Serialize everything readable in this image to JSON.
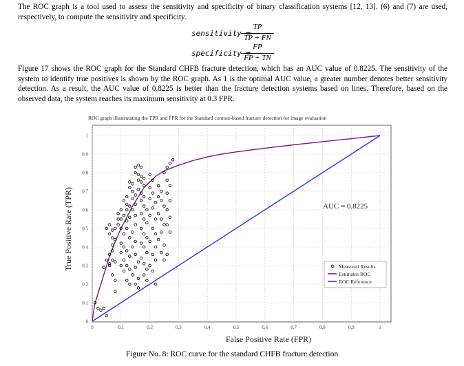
{
  "paragraph_1": "The ROC graph is a tool used to assess the sensitivity and specificity of binary classification systems [12, 13]. (6) and (7) are used, respectively, to compute the sensitivity and specificity.",
  "equations": {
    "sensitivity_lhs": "sensitivity =",
    "sensitivity_num": "TP",
    "sensitivity_den": "TP + FN",
    "specificity_lhs": "specificity =",
    "specificity_num": "FP",
    "specificity_den": "FP + TN"
  },
  "paragraph_2": "Figure 17 shows the ROC graph for the Standard CHFB fracture detection, which has an AUC value of 0.8225. The sensitivity of the system to identify true positives is shown by the ROC graph. As 1 is the optimal AUC value, a greater number denotes better sensitivity detection. As a result, the AUC value of 0.8225 is better than the fracture detection systems based on lines. Therefore, based on the observed data, the system reaches its maximum sensitivity at 0.3 FPR.",
  "caption": "Figure No. 8: ROC curve for the standard CHFB fracture detection",
  "chart_data": {
    "type": "line",
    "title": "ROC graph illustrutating the TPR and FPR for the Standard contour-based fracture detection for image evaluation",
    "xlabel": "False Positive Rate (FPR)",
    "ylabel": "True Positive Rate (TPR)",
    "xlim": [
      0,
      1
    ],
    "ylim": [
      0,
      1
    ],
    "xticks": [
      "0",
      "0,1",
      "0,2",
      "0,3",
      "0,4",
      "0,5",
      "0,6",
      "0,7",
      "0,8",
      "0,9",
      "1"
    ],
    "yticks": [
      "0",
      "0.1",
      "0.2",
      "0.3",
      "0.4",
      "0.5",
      "0.6",
      "0.7",
      "0.8",
      "0.9",
      "1"
    ],
    "grid": true,
    "legend_position": "bottom-right",
    "annotation": "AUC = 0.8225",
    "series": [
      {
        "name": "Measured Results",
        "kind": "scatter",
        "color": "#000000",
        "points": [
          [
            0.01,
            0.1
          ],
          [
            0.02,
            0.07
          ],
          [
            0.03,
            0.06
          ],
          [
            0.04,
            0.07
          ],
          [
            0.05,
            0.03
          ],
          [
            0.06,
            0.3
          ],
          [
            0.04,
            0.29
          ],
          [
            0.05,
            0.33
          ],
          [
            0.06,
            0.36
          ],
          [
            0.07,
            0.38
          ],
          [
            0.06,
            0.31
          ],
          [
            0.07,
            0.41
          ],
          [
            0.07,
            0.45
          ],
          [
            0.06,
            0.47
          ],
          [
            0.05,
            0.5
          ],
          [
            0.06,
            0.52
          ],
          [
            0.07,
            0.49
          ],
          [
            0.08,
            0.5
          ],
          [
            0.08,
            0.44
          ],
          [
            0.07,
            0.33
          ],
          [
            0.08,
            0.32
          ],
          [
            0.07,
            0.25
          ],
          [
            0.08,
            0.22
          ],
          [
            0.08,
            0.16
          ],
          [
            0.09,
            0.55
          ],
          [
            0.09,
            0.52
          ],
          [
            0.09,
            0.58
          ],
          [
            0.1,
            0.6
          ],
          [
            0.1,
            0.55
          ],
          [
            0.1,
            0.5
          ],
          [
            0.11,
            0.47
          ],
          [
            0.1,
            0.42
          ],
          [
            0.11,
            0.4
          ],
          [
            0.1,
            0.37
          ],
          [
            0.11,
            0.33
          ],
          [
            0.1,
            0.3
          ],
          [
            0.11,
            0.27
          ],
          [
            0.11,
            0.57
          ],
          [
            0.12,
            0.54
          ],
          [
            0.12,
            0.6
          ],
          [
            0.12,
            0.63
          ],
          [
            0.11,
            0.65
          ],
          [
            0.12,
            0.67
          ],
          [
            0.13,
            0.62
          ],
          [
            0.13,
            0.56
          ],
          [
            0.12,
            0.5
          ],
          [
            0.13,
            0.45
          ],
          [
            0.12,
            0.38
          ],
          [
            0.13,
            0.35
          ],
          [
            0.12,
            0.3
          ],
          [
            0.13,
            0.28
          ],
          [
            0.12,
            0.22
          ],
          [
            0.13,
            0.2
          ],
          [
            0.13,
            0.72
          ],
          [
            0.13,
            0.75
          ],
          [
            0.14,
            0.74
          ],
          [
            0.14,
            0.7
          ],
          [
            0.15,
            0.68
          ],
          [
            0.14,
            0.66
          ],
          [
            0.15,
            0.63
          ],
          [
            0.14,
            0.6
          ],
          [
            0.15,
            0.57
          ],
          [
            0.15,
            0.52
          ],
          [
            0.14,
            0.48
          ],
          [
            0.15,
            0.43
          ],
          [
            0.14,
            0.4
          ],
          [
            0.15,
            0.36
          ],
          [
            0.16,
            0.32
          ],
          [
            0.15,
            0.29
          ],
          [
            0.14,
            0.25
          ],
          [
            0.16,
            0.23
          ],
          [
            0.15,
            0.2
          ],
          [
            0.16,
            0.18
          ],
          [
            0.15,
            0.83
          ],
          [
            0.16,
            0.84
          ],
          [
            0.17,
            0.83
          ],
          [
            0.15,
            0.8
          ],
          [
            0.16,
            0.79
          ],
          [
            0.17,
            0.78
          ],
          [
            0.18,
            0.77
          ],
          [
            0.16,
            0.76
          ],
          [
            0.17,
            0.75
          ],
          [
            0.18,
            0.73
          ],
          [
            0.16,
            0.71
          ],
          [
            0.17,
            0.69
          ],
          [
            0.18,
            0.67
          ],
          [
            0.17,
            0.65
          ],
          [
            0.18,
            0.62
          ],
          [
            0.19,
            0.6
          ],
          [
            0.17,
            0.58
          ],
          [
            0.18,
            0.55
          ],
          [
            0.19,
            0.53
          ],
          [
            0.17,
            0.5
          ],
          [
            0.18,
            0.47
          ],
          [
            0.19,
            0.45
          ],
          [
            0.17,
            0.42
          ],
          [
            0.18,
            0.4
          ],
          [
            0.19,
            0.37
          ],
          [
            0.17,
            0.34
          ],
          [
            0.18,
            0.31
          ],
          [
            0.19,
            0.28
          ],
          [
            0.18,
            0.25
          ],
          [
            0.19,
            0.22
          ],
          [
            0.2,
            0.79
          ],
          [
            0.21,
            0.76
          ],
          [
            0.2,
            0.72
          ],
          [
            0.21,
            0.69
          ],
          [
            0.2,
            0.66
          ],
          [
            0.22,
            0.64
          ],
          [
            0.21,
            0.61
          ],
          [
            0.2,
            0.57
          ],
          [
            0.22,
            0.55
          ],
          [
            0.21,
            0.5
          ],
          [
            0.22,
            0.47
          ],
          [
            0.2,
            0.43
          ],
          [
            0.22,
            0.4
          ],
          [
            0.21,
            0.36
          ],
          [
            0.22,
            0.33
          ],
          [
            0.2,
            0.3
          ],
          [
            0.21,
            0.27
          ],
          [
            0.22,
            0.2
          ],
          [
            0.23,
            0.73
          ],
          [
            0.24,
            0.7
          ],
          [
            0.23,
            0.67
          ],
          [
            0.24,
            0.65
          ],
          [
            0.25,
            0.62
          ],
          [
            0.23,
            0.58
          ],
          [
            0.24,
            0.55
          ],
          [
            0.25,
            0.52
          ],
          [
            0.24,
            0.48
          ],
          [
            0.23,
            0.44
          ],
          [
            0.25,
            0.41
          ],
          [
            0.24,
            0.37
          ],
          [
            0.25,
            0.33
          ],
          [
            0.26,
            0.36
          ],
          [
            0.25,
            0.8
          ],
          [
            0.26,
            0.83
          ],
          [
            0.27,
            0.85
          ],
          [
            0.28,
            0.87
          ],
          [
            0.26,
            0.76
          ],
          [
            0.27,
            0.73
          ],
          [
            0.26,
            0.69
          ],
          [
            0.27,
            0.65
          ],
          [
            0.26,
            0.6
          ],
          [
            0.27,
            0.56
          ],
          [
            0.26,
            0.52
          ],
          [
            0.27,
            0.48
          ]
        ]
      },
      {
        "name": "Estimates ROC",
        "kind": "line",
        "color": "#7a1a7a",
        "points": [
          [
            0,
            0
          ],
          [
            0.005,
            0.06
          ],
          [
            0.01,
            0.1
          ],
          [
            0.02,
            0.15
          ],
          [
            0.03,
            0.2
          ],
          [
            0.04,
            0.25
          ],
          [
            0.05,
            0.3
          ],
          [
            0.06,
            0.35
          ],
          [
            0.07,
            0.39
          ],
          [
            0.08,
            0.43
          ],
          [
            0.1,
            0.5
          ],
          [
            0.12,
            0.56
          ],
          [
            0.14,
            0.62
          ],
          [
            0.16,
            0.67
          ],
          [
            0.18,
            0.72
          ],
          [
            0.2,
            0.75
          ],
          [
            0.22,
            0.78
          ],
          [
            0.25,
            0.81
          ],
          [
            0.3,
            0.84
          ],
          [
            0.35,
            0.865
          ],
          [
            0.4,
            0.885
          ],
          [
            0.45,
            0.9
          ],
          [
            0.5,
            0.912
          ],
          [
            0.6,
            0.932
          ],
          [
            0.7,
            0.95
          ],
          [
            0.8,
            0.967
          ],
          [
            0.9,
            0.983
          ],
          [
            1,
            1
          ]
        ]
      },
      {
        "name": "ROC Reference",
        "kind": "line",
        "color": "#2233ee",
        "points": [
          [
            0,
            0
          ],
          [
            1,
            1
          ]
        ]
      }
    ]
  }
}
